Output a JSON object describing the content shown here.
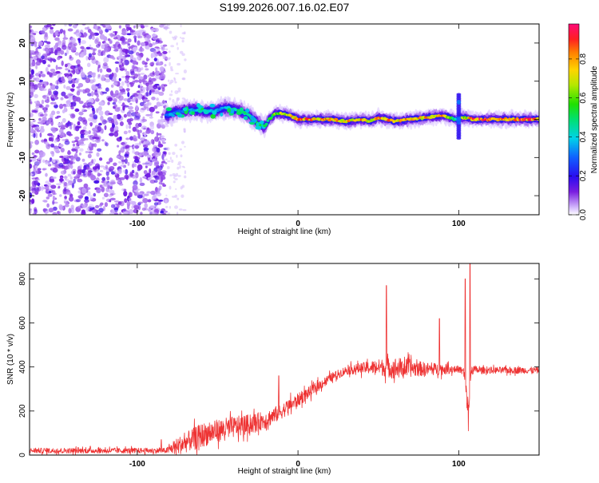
{
  "title": "S199.2026.007.16.02.E07",
  "colorbar": {
    "label": "Normalized spectral amplitude",
    "ticks": [
      "0.0",
      "0.2",
      "0.4",
      "0.6",
      "0.8"
    ],
    "tick_values": [
      0.0,
      0.2,
      0.4,
      0.6,
      0.8
    ],
    "range": [
      0,
      0.98
    ]
  },
  "colors": {
    "snr_line": "#ee3333",
    "spectrogram_noise": "#7a1fe0",
    "ridge_core": "#e8302a"
  },
  "chart_data": [
    {
      "type": "heatmap",
      "name": "spectrogram",
      "xlabel": "Height of straight line (km)",
      "ylabel": "Frequency (Hz)",
      "xlim": [
        -167,
        150
      ],
      "ylim": [
        -25,
        25
      ],
      "xticks": [
        -100,
        0,
        100
      ],
      "xtick_labels": [
        "-100",
        "0",
        "100"
      ],
      "yticks": [
        -20,
        -10,
        0,
        10,
        20
      ],
      "ytick_labels": [
        "-20",
        "-10",
        "0",
        "10",
        "20"
      ],
      "noise_region_x": [
        -167,
        -82
      ],
      "noise_fade_edge_x": -70,
      "ridge": {
        "x": [
          -82,
          -75,
          -65,
          -55,
          -45,
          -38,
          -30,
          -25,
          -21,
          -18,
          -14,
          -10,
          -5,
          0,
          10,
          20,
          30,
          40,
          45,
          50,
          55,
          60,
          70,
          80,
          90,
          98,
          100,
          102,
          110,
          120,
          130,
          140,
          150
        ],
        "freq": [
          1,
          2,
          2.5,
          2,
          3,
          2.5,
          1,
          -1,
          -2,
          0,
          1.5,
          1.5,
          1,
          0,
          0,
          0,
          -0.5,
          0,
          -0.5,
          0.5,
          0,
          -0.5,
          0,
          0.5,
          1,
          0,
          0,
          0.5,
          0,
          0,
          0,
          0,
          0
        ],
        "amplitude": [
          0.3,
          0.35,
          0.4,
          0.4,
          0.45,
          0.5,
          0.55,
          0.6,
          0.5,
          0.6,
          0.7,
          0.75,
          0.8,
          0.9,
          0.9,
          0.9,
          0.85,
          0.9,
          0.8,
          0.85,
          0.9,
          0.85,
          0.9,
          0.85,
          0.85,
          0.5,
          0.4,
          0.7,
          0.95,
          0.95,
          0.95,
          0.95,
          0.95
        ]
      },
      "spike_x": 100,
      "spike_freq_range": [
        -5,
        7
      ]
    },
    {
      "type": "line",
      "name": "snr",
      "xlabel": "Height of straight line (km)",
      "ylabel": "SNR (10 * v/v)",
      "xlim": [
        -167,
        150
      ],
      "ylim": [
        0,
        870
      ],
      "xticks": [
        -100,
        0,
        100
      ],
      "xtick_labels": [
        "-100",
        "0",
        "100"
      ],
      "yticks": [
        0,
        200,
        400,
        600,
        800
      ],
      "ytick_labels": [
        "0",
        "200",
        "400",
        "600",
        "800"
      ],
      "envelope": {
        "x": [
          -167,
          -120,
          -82,
          -75,
          -60,
          -45,
          -30,
          -20,
          -10,
          0,
          10,
          20,
          30,
          40,
          50,
          60,
          70,
          80,
          90,
          100,
          103,
          106,
          108,
          112,
          120,
          150
        ],
        "mean": [
          20,
          20,
          20,
          40,
          90,
          120,
          140,
          160,
          200,
          250,
          300,
          350,
          385,
          395,
          400,
          395,
          395,
          390,
          390,
          390,
          380,
          200,
          390,
          385,
          385,
          385
        ],
        "noise": [
          12,
          12,
          12,
          40,
          55,
          50,
          45,
          40,
          35,
          30,
          25,
          20,
          20,
          25,
          35,
          50,
          40,
          30,
          25,
          15,
          20,
          60,
          25,
          15,
          15,
          15
        ]
      },
      "spikes": [
        {
          "x": -85,
          "y": 70
        },
        {
          "x": -12,
          "y": 360
        },
        {
          "x": 55,
          "y": 770
        },
        {
          "x": 88,
          "y": 620
        },
        {
          "x": 104,
          "y": 800
        },
        {
          "x": 107,
          "y": 870
        },
        {
          "x": 106,
          "y": 110
        }
      ]
    }
  ]
}
